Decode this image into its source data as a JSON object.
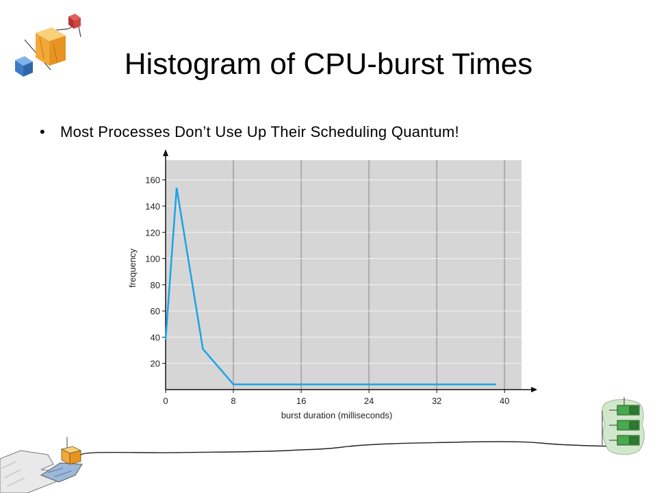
{
  "slide": {
    "title": "Histogram of CPU-burst Times",
    "bullets": [
      {
        "marker": "•",
        "text": "Most Processes Don’t Use Up Their Scheduling Quantum!"
      }
    ]
  },
  "chart_data": {
    "type": "line",
    "title": "",
    "xlabel": "burst duration (milliseconds)",
    "ylabel": "frequency",
    "xlim": [
      0,
      42
    ],
    "ylim": [
      0,
      175
    ],
    "xticks": [
      0,
      8,
      16,
      24,
      32,
      40
    ],
    "yticks": [
      20,
      40,
      60,
      80,
      100,
      120,
      140,
      160
    ],
    "grid": true,
    "plot_background": "#d6d6d6",
    "grid_color": "#b8b8b8",
    "series": [
      {
        "color": "#1aa3e8",
        "x": [
          0,
          1.3,
          4.4,
          8,
          39
        ],
        "y": [
          38,
          154,
          31,
          4,
          4
        ]
      }
    ]
  },
  "decorations": {
    "top_left": "cube-clipart-icon",
    "bottom_left": "hand-holding-box-icon",
    "bottom_right": "stacked-boxes-icon",
    "line": "hand-drawn-line"
  }
}
